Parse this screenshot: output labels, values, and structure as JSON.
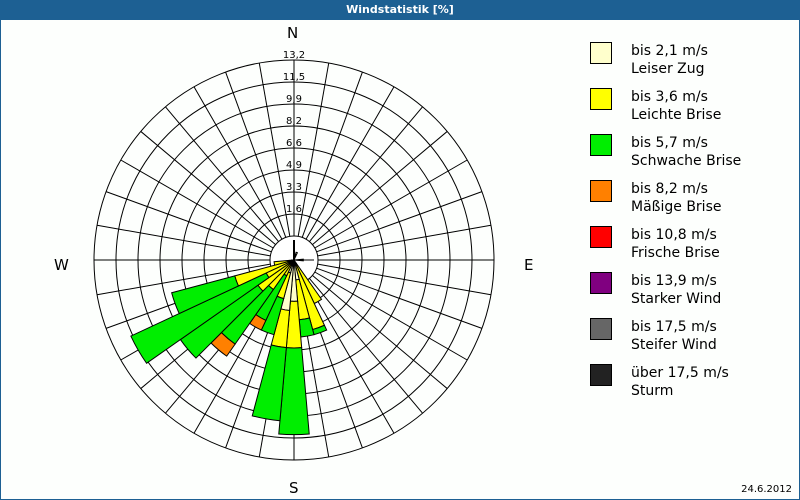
{
  "window": {
    "title": "Windstatistik [%]"
  },
  "footer": {
    "date": "24.6.2012"
  },
  "compass": {
    "n": "N",
    "e": "E",
    "s": "S",
    "w": "W"
  },
  "legend": [
    {
      "range": "bis 2,1 m/s",
      "name": "Leiser Zug",
      "color": "#ffffcc"
    },
    {
      "range": "bis 3,6 m/s",
      "name": "Leichte Brise",
      "color": "#ffff00"
    },
    {
      "range": "bis 5,7 m/s",
      "name": "Schwache Brise",
      "color": "#00ee00"
    },
    {
      "range": "bis 8,2 m/s",
      "name": "Mäßige Brise",
      "color": "#ff8000"
    },
    {
      "range": "bis 10,8 m/s",
      "name": "Frische Brise",
      "color": "#ff0000"
    },
    {
      "range": "bis 13,9 m/s",
      "name": "Starker Wind",
      "color": "#800080"
    },
    {
      "range": "bis 17,5 m/s",
      "name": "Steifer Wind",
      "color": "#666666"
    },
    {
      "range": "über 17,5 m/s",
      "name": "Sturm",
      "color": "#222222"
    }
  ],
  "chart_data": {
    "type": "wind-rose",
    "title": "Windstatistik [%]",
    "unit": "%",
    "ring_labels": [
      "1,6",
      "3,3",
      "4,9",
      "6,6",
      "8,2",
      "9,9",
      "11,5",
      "13,2"
    ],
    "rmax": 13.2,
    "sector_width_deg": 10,
    "speed_classes": [
      "bis 2,1 m/s",
      "bis 3,6 m/s",
      "bis 5,7 m/s",
      "bis 8,2 m/s",
      "bis 10,8 m/s",
      "bis 13,9 m/s",
      "bis 17,5 m/s",
      "über 17,5 m/s"
    ],
    "sectors": [
      {
        "dir": 20,
        "values": [
          0.6,
          0,
          0,
          0,
          0,
          0,
          0,
          0
        ]
      },
      {
        "dir": 90,
        "values": [
          0.7,
          0,
          0,
          0,
          0,
          0,
          0,
          0
        ]
      },
      {
        "dir": 150,
        "values": [
          0.3,
          3.3,
          0,
          0,
          0,
          0,
          0,
          0
        ]
      },
      {
        "dir": 160,
        "values": [
          0.3,
          5.1,
          0.4,
          0,
          0,
          0,
          0,
          0
        ]
      },
      {
        "dir": 170,
        "values": [
          1.5,
          3.0,
          1.3,
          0,
          0,
          0,
          0,
          0
        ]
      },
      {
        "dir": 180,
        "values": [
          3.1,
          3.5,
          6.5,
          0,
          0,
          0,
          0,
          0
        ]
      },
      {
        "dir": 190,
        "values": [
          3.8,
          2.8,
          5.5,
          0,
          0,
          0,
          0,
          0
        ]
      },
      {
        "dir": 200,
        "values": [
          1.0,
          2.0,
          2.8,
          0,
          0,
          0,
          0,
          0
        ]
      },
      {
        "dir": 210,
        "values": [
          0.3,
          1.0,
          3.7,
          0.8,
          0,
          0,
          0,
          0
        ]
      },
      {
        "dir": 220,
        "values": [
          0.3,
          2.4,
          5.0,
          1.1,
          0,
          0,
          0,
          0
        ]
      },
      {
        "dir": 230,
        "values": [
          0.3,
          3.0,
          7.1,
          0,
          0,
          0,
          0,
          0
        ]
      },
      {
        "dir": 240,
        "values": [
          0.3,
          2.0,
          11.2,
          0,
          0,
          0,
          0,
          0
        ]
      },
      {
        "dir": 250,
        "values": [
          0.3,
          4.3,
          4.9,
          0,
          0,
          0,
          0,
          0
        ]
      },
      {
        "dir": 260,
        "values": [
          0.3,
          1.2,
          0,
          0,
          0,
          0,
          0,
          0
        ]
      }
    ]
  }
}
